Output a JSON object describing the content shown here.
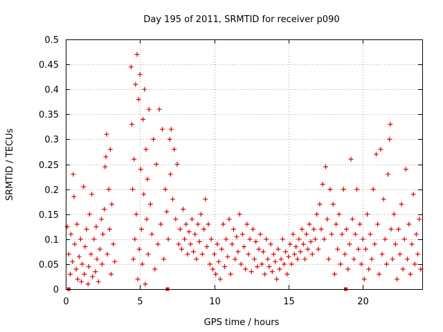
{
  "chart_data": {
    "type": "scatter",
    "title": "Day 195 of 2011, SRMTID for receiver p090",
    "xlabel": "GPS time / hours",
    "ylabel": "SRMTID / TECUs",
    "xlim": [
      0,
      24
    ],
    "ylim": [
      0,
      0.5
    ],
    "x_ticks": [
      0,
      5,
      10,
      15,
      20
    ],
    "x_tick_labels": [
      "0",
      "5",
      "10",
      "15",
      "20"
    ],
    "y_ticks": [
      0,
      0.05,
      0.1,
      0.15,
      0.2,
      0.25,
      0.3,
      0.35,
      0.4,
      0.45,
      0.5
    ],
    "y_tick_labels": [
      "0",
      "0.05",
      "0.1",
      "0.15",
      "0.2",
      "0.25",
      "0.3",
      "0.35",
      "0.4",
      "0.45",
      "0.5"
    ],
    "grid": true,
    "marker": "+",
    "series_color": "#dd0000",
    "series": [
      {
        "name": "SRMTID",
        "points": [
          [
            0.1,
            0.125
          ],
          [
            0.2,
            0.07
          ],
          [
            0.3,
            0.03
          ],
          [
            0.35,
            0.11
          ],
          [
            0.45,
            0.055
          ],
          [
            0.5,
            0.23
          ],
          [
            0.55,
            0.185
          ],
          [
            0.6,
            0.09
          ],
          [
            0.7,
            0.04
          ],
          [
            0.75,
            0.13
          ],
          [
            0.8,
            0.02
          ],
          [
            0.9,
            0.065
          ],
          [
            1.0,
            0.1
          ],
          [
            1.05,
            0.015
          ],
          [
            1.1,
            0.05
          ],
          [
            1.2,
            0.205
          ],
          [
            1.25,
            0.03
          ],
          [
            1.3,
            0.085
          ],
          [
            1.4,
            0.12
          ],
          [
            1.5,
            0.01
          ],
          [
            1.55,
            0.045
          ],
          [
            1.6,
            0.15
          ],
          [
            1.7,
            0.07
          ],
          [
            1.75,
            0.19
          ],
          [
            1.8,
            0.025
          ],
          [
            1.9,
            0.1
          ],
          [
            2.0,
            0.035
          ],
          [
            2.05,
            0.125
          ],
          [
            2.1,
            0.06
          ],
          [
            2.2,
            0.015
          ],
          [
            2.3,
            0.08
          ],
          [
            2.4,
            0.14
          ],
          [
            2.45,
            0.05
          ],
          [
            2.5,
            0.11
          ],
          [
            2.6,
            0.16
          ],
          [
            2.65,
            0.245
          ],
          [
            2.7,
            0.265
          ],
          [
            2.75,
            0.31
          ],
          [
            2.8,
            0.07
          ],
          [
            2.9,
            0.2
          ],
          [
            2.95,
            0.12
          ],
          [
            3.0,
            0.28
          ],
          [
            3.05,
            0.03
          ],
          [
            3.1,
            0.17
          ],
          [
            3.2,
            0.09
          ],
          [
            3.3,
            0.055
          ],
          [
            4.4,
            0.445
          ],
          [
            4.45,
            0.33
          ],
          [
            4.5,
            0.2
          ],
          [
            4.55,
            0.06
          ],
          [
            4.6,
            0.26
          ],
          [
            4.65,
            0.1
          ],
          [
            4.7,
            0.41
          ],
          [
            4.75,
            0.15
          ],
          [
            4.8,
            0.47
          ],
          [
            4.85,
            0.02
          ],
          [
            4.9,
            0.38
          ],
          [
            4.95,
            0.08
          ],
          [
            5.0,
            0.43
          ],
          [
            5.05,
            0.24
          ],
          [
            5.1,
            0.12
          ],
          [
            5.15,
            0.05
          ],
          [
            5.2,
            0.34
          ],
          [
            5.25,
            0.19
          ],
          [
            5.3,
            0.4
          ],
          [
            5.35,
            0.01
          ],
          [
            5.4,
            0.28
          ],
          [
            5.45,
            0.14
          ],
          [
            5.5,
            0.22
          ],
          [
            5.55,
            0.07
          ],
          [
            5.6,
            0.36
          ],
          [
            5.7,
            0.17
          ],
          [
            5.8,
            0.11
          ],
          [
            5.9,
            0.3
          ],
          [
            6.0,
            0.04
          ],
          [
            6.1,
            0.25
          ],
          [
            6.2,
            0.09
          ],
          [
            6.3,
            0.36
          ],
          [
            6.4,
            0.13
          ],
          [
            6.5,
            0.32
          ],
          [
            6.6,
            0.06
          ],
          [
            6.7,
            0.2
          ],
          [
            6.8,
            0.155
          ],
          [
            6.9,
            0.1
          ],
          [
            7.0,
            0.3
          ],
          [
            7.05,
            0.23
          ],
          [
            7.1,
            0.32
          ],
          [
            7.2,
            0.18
          ],
          [
            7.3,
            0.28
          ],
          [
            7.4,
            0.14
          ],
          [
            7.5,
            0.25
          ],
          [
            7.6,
            0.09
          ],
          [
            7.7,
            0.12
          ],
          [
            7.8,
            0.08
          ],
          [
            7.9,
            0.16
          ],
          [
            8.0,
            0.1
          ],
          [
            8.1,
            0.13
          ],
          [
            8.2,
            0.07
          ],
          [
            8.3,
            0.115
          ],
          [
            8.4,
            0.09
          ],
          [
            8.5,
            0.14
          ],
          [
            8.6,
            0.075
          ],
          [
            8.7,
            0.11
          ],
          [
            8.8,
            0.06
          ],
          [
            8.9,
            0.13
          ],
          [
            9.0,
            0.095
          ],
          [
            9.1,
            0.15
          ],
          [
            9.2,
            0.07
          ],
          [
            9.3,
            0.12
          ],
          [
            9.4,
            0.18
          ],
          [
            9.5,
            0.085
          ],
          [
            9.6,
            0.13
          ],
          [
            9.7,
            0.05
          ],
          [
            9.8,
            0.1
          ],
          [
            9.9,
            0.04
          ],
          [
            10.0,
            0.07
          ],
          [
            10.1,
            0.03
          ],
          [
            10.2,
            0.09
          ],
          [
            10.3,
            0.055
          ],
          [
            10.4,
            0.02
          ],
          [
            10.5,
            0.08
          ],
          [
            10.6,
            0.13
          ],
          [
            10.7,
            0.045
          ],
          [
            10.8,
            0.1
          ],
          [
            10.9,
            0.065
          ],
          [
            11.0,
            0.14
          ],
          [
            11.1,
            0.03
          ],
          [
            11.2,
            0.09
          ],
          [
            11.3,
            0.12
          ],
          [
            11.4,
            0.06
          ],
          [
            11.5,
            0.105
          ],
          [
            11.6,
            0.075
          ],
          [
            11.7,
            0.15
          ],
          [
            11.8,
            0.05
          ],
          [
            11.9,
            0.11
          ],
          [
            12.0,
            0.085
          ],
          [
            12.1,
            0.04
          ],
          [
            12.2,
            0.13
          ],
          [
            12.3,
            0.07
          ],
          [
            12.4,
            0.1
          ],
          [
            12.5,
            0.035
          ],
          [
            12.6,
            0.12
          ],
          [
            12.7,
            0.06
          ],
          [
            12.8,
            0.095
          ],
          [
            12.9,
            0.045
          ],
          [
            13.0,
            0.08
          ],
          [
            13.1,
            0.11
          ],
          [
            13.2,
            0.05
          ],
          [
            13.3,
            0.075
          ],
          [
            13.4,
            0.03
          ],
          [
            13.5,
            0.1
          ],
          [
            13.6,
            0.06
          ],
          [
            13.7,
            0.045
          ],
          [
            13.8,
            0.09
          ],
          [
            13.9,
            0.035
          ],
          [
            14.0,
            0.07
          ],
          [
            14.1,
            0.055
          ],
          [
            14.2,
            0.02
          ],
          [
            14.3,
            0.08
          ],
          [
            14.4,
            0.04
          ],
          [
            14.5,
            0.06
          ],
          [
            14.6,
            0.1
          ],
          [
            14.7,
            0.05
          ],
          [
            14.8,
            0.075
          ],
          [
            14.9,
            0.03
          ],
          [
            15.0,
            0.065
          ],
          [
            15.1,
            0.09
          ],
          [
            15.2,
            0.05
          ],
          [
            15.3,
            0.11
          ],
          [
            15.4,
            0.07
          ],
          [
            15.5,
            0.085
          ],
          [
            15.6,
            0.06
          ],
          [
            15.7,
            0.1
          ],
          [
            15.8,
            0.075
          ],
          [
            15.9,
            0.12
          ],
          [
            16.0,
            0.09
          ],
          [
            16.1,
            0.06
          ],
          [
            16.2,
            0.11
          ],
          [
            16.3,
            0.08
          ],
          [
            16.4,
            0.13
          ],
          [
            16.5,
            0.095
          ],
          [
            16.6,
            0.07
          ],
          [
            16.7,
            0.12
          ],
          [
            16.8,
            0.1
          ],
          [
            16.9,
            0.15
          ],
          [
            17.0,
            0.08
          ],
          [
            17.1,
            0.17
          ],
          [
            17.2,
            0.12
          ],
          [
            17.3,
            0.21
          ],
          [
            17.4,
            0.1
          ],
          [
            17.5,
            0.245
          ],
          [
            17.6,
            0.14
          ],
          [
            17.7,
            0.06
          ],
          [
            17.8,
            0.2
          ],
          [
            17.9,
            0.11
          ],
          [
            18.0,
            0.17
          ],
          [
            18.1,
            0.03
          ],
          [
            18.2,
            0.13
          ],
          [
            18.3,
            0.08
          ],
          [
            18.4,
            0.15
          ],
          [
            18.5,
            0.05
          ],
          [
            18.6,
            0.11
          ],
          [
            18.7,
            0.2
          ],
          [
            18.8,
            0.07
          ],
          [
            18.9,
            0.12
          ],
          [
            19.0,
            0.04
          ],
          [
            19.1,
            0.09
          ],
          [
            19.2,
            0.26
          ],
          [
            19.3,
            0.14
          ],
          [
            19.4,
            0.06
          ],
          [
            19.5,
            0.11
          ],
          [
            19.6,
            0.2
          ],
          [
            19.7,
            0.08
          ],
          [
            19.8,
            0.13
          ],
          [
            19.9,
            0.05
          ],
          [
            20.0,
            0.1
          ],
          [
            20.1,
            0.02
          ],
          [
            20.2,
            0.08
          ],
          [
            20.3,
            0.15
          ],
          [
            20.4,
            0.04
          ],
          [
            20.5,
            0.11
          ],
          [
            20.6,
            0.06
          ],
          [
            20.7,
            0.2
          ],
          [
            20.8,
            0.09
          ],
          [
            20.9,
            0.27
          ],
          [
            21.0,
            0.13
          ],
          [
            21.1,
            0.03
          ],
          [
            21.2,
            0.28
          ],
          [
            21.3,
            0.07
          ],
          [
            21.4,
            0.18
          ],
          [
            21.5,
            0.1
          ],
          [
            21.6,
            0.05
          ],
          [
            21.7,
            0.23
          ],
          [
            21.8,
            0.3
          ],
          [
            21.85,
            0.33
          ],
          [
            21.9,
            0.12
          ],
          [
            22.0,
            0.06
          ],
          [
            22.1,
            0.15
          ],
          [
            22.2,
            0.09
          ],
          [
            22.3,
            0.02
          ],
          [
            22.4,
            0.12
          ],
          [
            22.5,
            0.07
          ],
          [
            22.6,
            0.17
          ],
          [
            22.7,
            0.04
          ],
          [
            22.8,
            0.1
          ],
          [
            22.9,
            0.24
          ],
          [
            23.0,
            0.06
          ],
          [
            23.1,
            0.13
          ],
          [
            23.2,
            0.03
          ],
          [
            23.3,
            0.09
          ],
          [
            23.4,
            0.19
          ],
          [
            23.5,
            0.05
          ],
          [
            23.6,
            0.11
          ],
          [
            23.7,
            0.07
          ],
          [
            23.8,
            0.14
          ],
          [
            23.9,
            0.04
          ]
        ]
      }
    ],
    "filled_markers": [
      [
        0.2,
        0.0
      ],
      [
        6.85,
        0.0
      ],
      [
        18.85,
        0.0
      ]
    ]
  }
}
